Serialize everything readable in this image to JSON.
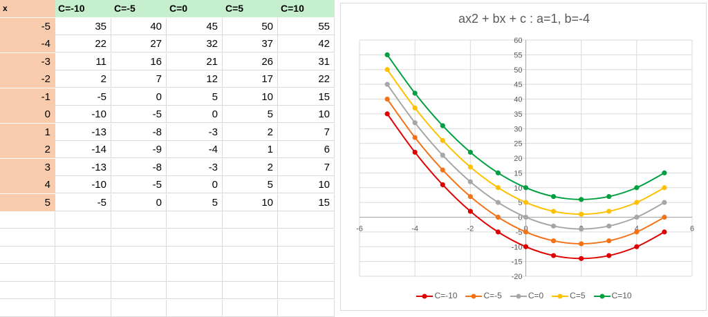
{
  "table": {
    "header": [
      "x",
      "C=-10",
      "C=-5",
      "C=0",
      "C=5",
      "C=10"
    ],
    "rows": [
      [
        "-5",
        "35",
        "40",
        "45",
        "50",
        "55"
      ],
      [
        "-4",
        "22",
        "27",
        "32",
        "37",
        "42"
      ],
      [
        "-3",
        "11",
        "16",
        "21",
        "26",
        "31"
      ],
      [
        "-2",
        "2",
        "7",
        "12",
        "17",
        "22"
      ],
      [
        "-1",
        "-5",
        "0",
        "5",
        "10",
        "15"
      ],
      [
        "0",
        "-10",
        "-5",
        "0",
        "5",
        "10"
      ],
      [
        "1",
        "-13",
        "-8",
        "-3",
        "2",
        "7"
      ],
      [
        "2",
        "-14",
        "-9",
        "-4",
        "1",
        "6"
      ],
      [
        "3",
        "-13",
        "-8",
        "-3",
        "2",
        "7"
      ],
      [
        "4",
        "-10",
        "-5",
        "0",
        "5",
        "10"
      ],
      [
        "5",
        "-5",
        "0",
        "5",
        "10",
        "15"
      ]
    ]
  },
  "chart_data": {
    "type": "line",
    "title": "ax2 + bx + c : a=1, b=-4",
    "x": [
      -5,
      -4,
      -3,
      -2,
      -1,
      0,
      1,
      2,
      3,
      4,
      5
    ],
    "xlim": [
      -6,
      6
    ],
    "ylim": [
      -20,
      60
    ],
    "xticks": [
      "-6",
      "-4",
      "-2",
      "0",
      "2",
      "4",
      "6"
    ],
    "yticks": [
      "-20",
      "-15",
      "-10",
      "-5",
      "0",
      "5",
      "10",
      "15",
      "20",
      "25",
      "30",
      "35",
      "40",
      "45",
      "50",
      "55",
      "60"
    ],
    "legend_position": "bottom",
    "smooth": true,
    "series": [
      {
        "name": "C=-10",
        "color": "#e00000",
        "values": [
          35,
          22,
          11,
          2,
          -5,
          -10,
          -13,
          -14,
          -13,
          -10,
          -5
        ]
      },
      {
        "name": "C=-5",
        "color": "#f47216",
        "values": [
          40,
          27,
          16,
          7,
          0,
          -5,
          -8,
          -9,
          -8,
          -5,
          0
        ]
      },
      {
        "name": "C=0",
        "color": "#a6a6a6",
        "values": [
          45,
          32,
          21,
          12,
          5,
          0,
          -3,
          -4,
          -3,
          0,
          5
        ]
      },
      {
        "name": "C=5",
        "color": "#ffc000",
        "values": [
          50,
          37,
          26,
          17,
          10,
          5,
          2,
          1,
          2,
          5,
          10
        ]
      },
      {
        "name": "C=10",
        "color": "#00a040",
        "values": [
          55,
          42,
          31,
          22,
          15,
          10,
          7,
          6,
          7,
          10,
          15
        ]
      }
    ]
  }
}
